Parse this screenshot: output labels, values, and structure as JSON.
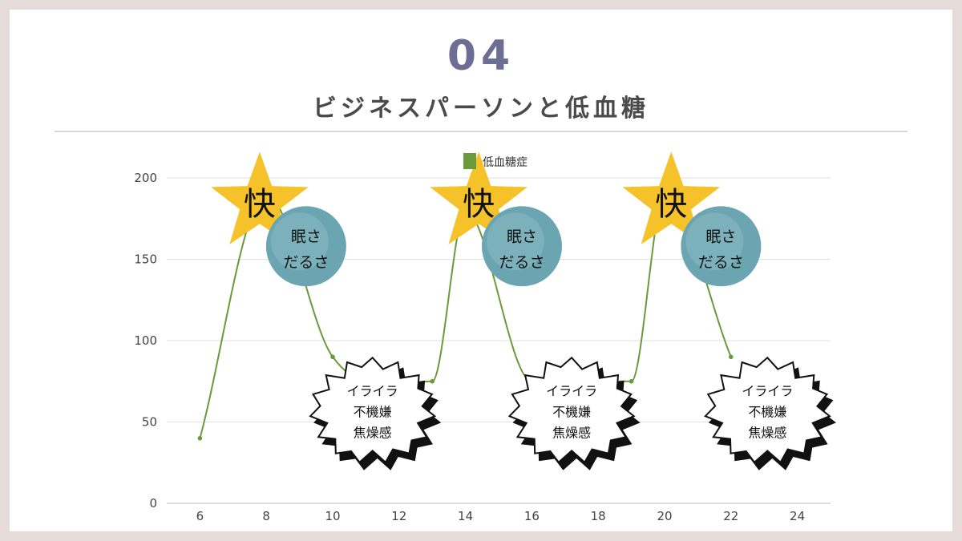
{
  "header": {
    "number": "04",
    "title": "ビジネスパーソンと低血糖"
  },
  "chart_data": {
    "type": "line",
    "series": [
      {
        "name": "低血糖症",
        "color": "#6a9a3a",
        "x": [
          6,
          8,
          10,
          13,
          14,
          16,
          19,
          20,
          22
        ],
        "y": [
          40,
          190,
          90,
          75,
          180,
          75,
          75,
          190,
          90
        ]
      }
    ],
    "x_ticks": [
      6,
      8,
      10,
      12,
      14,
      16,
      18,
      20,
      22,
      24
    ],
    "y_ticks": [
      0,
      50,
      100,
      150,
      200
    ],
    "xlim": [
      5,
      25
    ],
    "ylim": [
      0,
      200
    ],
    "grid": true,
    "legend": "top-center",
    "annotations": {
      "peak": {
        "label": "快",
        "shape": "star-badge",
        "color": "#f5c22a",
        "anchors": [
          [
            7.8,
            195
          ],
          [
            14.4,
            195
          ],
          [
            20.2,
            195
          ]
        ]
      },
      "drowsy": {
        "lines": [
          "眠さ",
          "だるさ"
        ],
        "shape": "circle-badge",
        "color": "#6aa5b1",
        "anchors": [
          [
            9.2,
            158
          ],
          [
            15.7,
            158
          ],
          [
            21.7,
            158
          ]
        ]
      },
      "irritated": {
        "lines": [
          "イライラ",
          "不機嫌",
          "焦燥感"
        ],
        "shape": "burst-bubble",
        "anchors": [
          [
            11.2,
            57
          ],
          [
            17.2,
            57
          ],
          [
            23.1,
            57
          ]
        ]
      }
    }
  }
}
